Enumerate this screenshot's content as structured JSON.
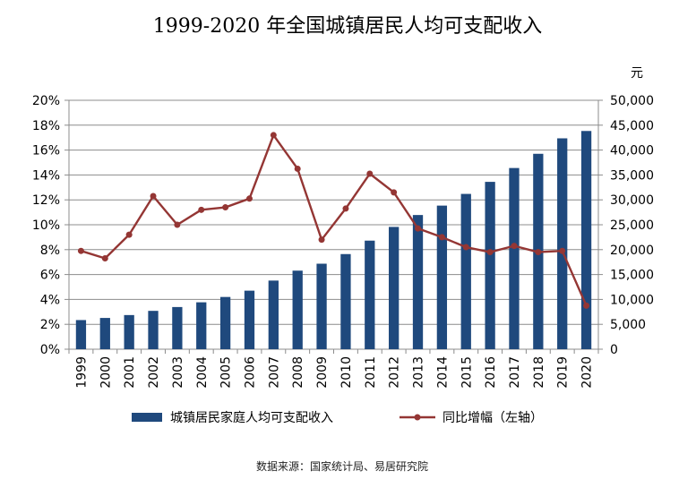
{
  "chart_data": {
    "type": "bar+line",
    "title": "1999-2020 年全国城镇居民人均可支配收入",
    "right_axis_unit": "元",
    "categories": [
      "1999",
      "2000",
      "2001",
      "2002",
      "2003",
      "2004",
      "2005",
      "2006",
      "2007",
      "2008",
      "2009",
      "2010",
      "2011",
      "2012",
      "2013",
      "2014",
      "2015",
      "2016",
      "2017",
      "2018",
      "2019",
      "2020"
    ],
    "series": [
      {
        "name": "城镇居民家庭人均可支配收入",
        "type": "bar",
        "axis": "right",
        "color": "#1F497D",
        "values": [
          5854,
          6280,
          6860,
          7703,
          8472,
          9422,
          10493,
          11759,
          13786,
          15781,
          17175,
          19109,
          21810,
          24565,
          26955,
          28844,
          31195,
          33616,
          36396,
          39251,
          42359,
          43834
        ]
      },
      {
        "name": "同比增幅（左轴）",
        "type": "line",
        "axis": "left",
        "color": "#943634",
        "values": [
          7.9,
          7.3,
          9.2,
          12.3,
          10.0,
          11.2,
          11.4,
          12.1,
          17.2,
          14.5,
          8.8,
          11.3,
          14.1,
          12.6,
          9.7,
          9.0,
          8.2,
          7.8,
          8.3,
          7.8,
          7.9,
          3.5
        ]
      }
    ],
    "y_left": {
      "min": 0,
      "max": 20,
      "step": 2,
      "format": "percent",
      "ticks": [
        "0%",
        "2%",
        "4%",
        "6%",
        "8%",
        "10%",
        "12%",
        "14%",
        "16%",
        "18%",
        "20%"
      ]
    },
    "y_right": {
      "min": 0,
      "max": 50000,
      "step": 5000,
      "ticks": [
        "0",
        "5,000",
        "10,000",
        "15,000",
        "20,000",
        "25,000",
        "30,000",
        "35,000",
        "40,000",
        "45,000",
        "50,000"
      ]
    },
    "grid": true,
    "legend_position": "bottom",
    "source": "数据来源：国家统计局、易居研究院"
  }
}
